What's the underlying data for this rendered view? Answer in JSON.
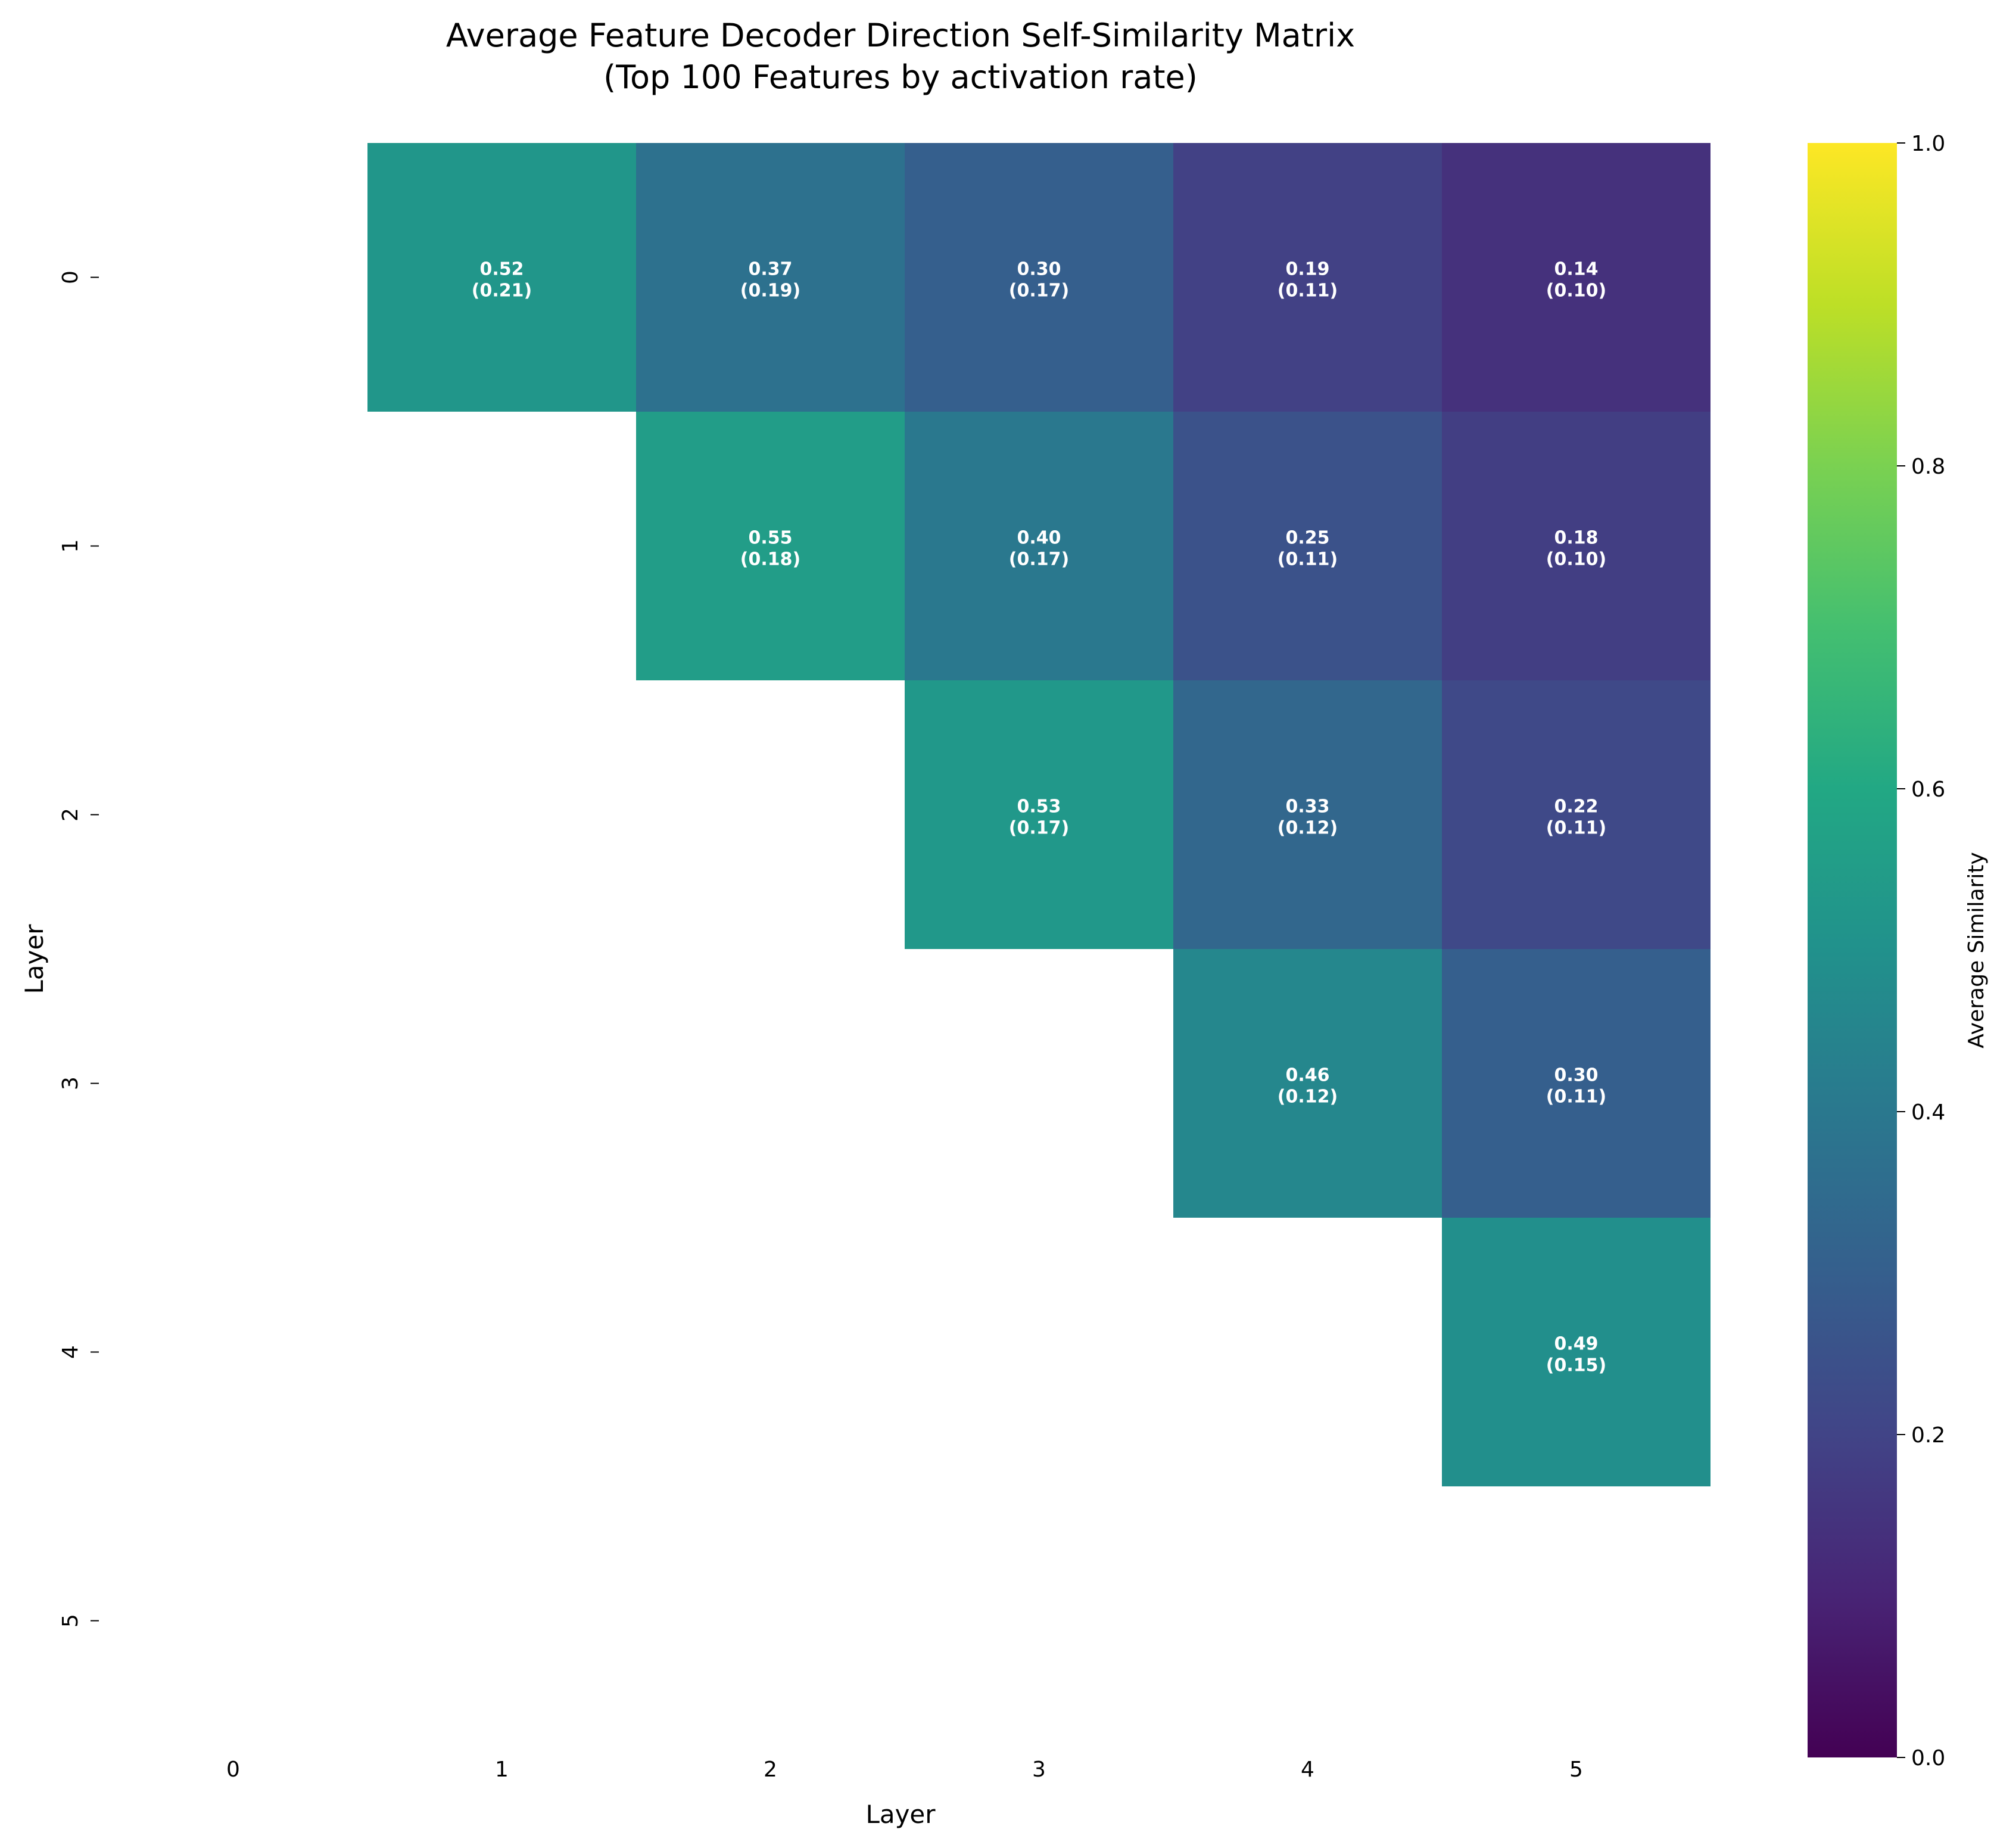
{
  "chart_data": {
    "type": "heatmap",
    "title_lines": [
      "Average Feature Decoder Direction Self-Similarity Matrix",
      "(Top 100 Features by activation rate)"
    ],
    "xlabel": "Layer",
    "ylabel": "Layer",
    "x_categories": [
      "0",
      "1",
      "2",
      "3",
      "4",
      "5"
    ],
    "y_categories": [
      "0",
      "1",
      "2",
      "3",
      "4",
      "5"
    ],
    "colormap": "viridis",
    "color_range": [
      0,
      1
    ],
    "colorbar_label": "Average Similarity",
    "colorbar_ticks": [
      "0.0",
      "0.2",
      "0.4",
      "0.6",
      "0.8",
      "1.0"
    ],
    "cells": [
      {
        "row": 0,
        "col": 1,
        "mean": 0.52,
        "std": 0.21,
        "label": "0.52",
        "sub": "(0.21)"
      },
      {
        "row": 0,
        "col": 2,
        "mean": 0.37,
        "std": 0.19,
        "label": "0.37",
        "sub": "(0.19)"
      },
      {
        "row": 0,
        "col": 3,
        "mean": 0.3,
        "std": 0.17,
        "label": "0.30",
        "sub": "(0.17)"
      },
      {
        "row": 0,
        "col": 4,
        "mean": 0.19,
        "std": 0.11,
        "label": "0.19",
        "sub": "(0.11)"
      },
      {
        "row": 0,
        "col": 5,
        "mean": 0.14,
        "std": 0.1,
        "label": "0.14",
        "sub": "(0.10)"
      },
      {
        "row": 1,
        "col": 2,
        "mean": 0.55,
        "std": 0.18,
        "label": "0.55",
        "sub": "(0.18)"
      },
      {
        "row": 1,
        "col": 3,
        "mean": 0.4,
        "std": 0.17,
        "label": "0.40",
        "sub": "(0.17)"
      },
      {
        "row": 1,
        "col": 4,
        "mean": 0.25,
        "std": 0.11,
        "label": "0.25",
        "sub": "(0.11)"
      },
      {
        "row": 1,
        "col": 5,
        "mean": 0.18,
        "std": 0.1,
        "label": "0.18",
        "sub": "(0.10)"
      },
      {
        "row": 2,
        "col": 3,
        "mean": 0.53,
        "std": 0.17,
        "label": "0.53",
        "sub": "(0.17)"
      },
      {
        "row": 2,
        "col": 4,
        "mean": 0.33,
        "std": 0.12,
        "label": "0.33",
        "sub": "(0.12)"
      },
      {
        "row": 2,
        "col": 5,
        "mean": 0.22,
        "std": 0.11,
        "label": "0.22",
        "sub": "(0.11)"
      },
      {
        "row": 3,
        "col": 4,
        "mean": 0.46,
        "std": 0.12,
        "label": "0.46",
        "sub": "(0.12)"
      },
      {
        "row": 3,
        "col": 5,
        "mean": 0.3,
        "std": 0.11,
        "label": "0.30",
        "sub": "(0.11)"
      },
      {
        "row": 4,
        "col": 5,
        "mean": 0.49,
        "std": 0.15,
        "label": "0.49",
        "sub": "(0.15)"
      }
    ]
  }
}
